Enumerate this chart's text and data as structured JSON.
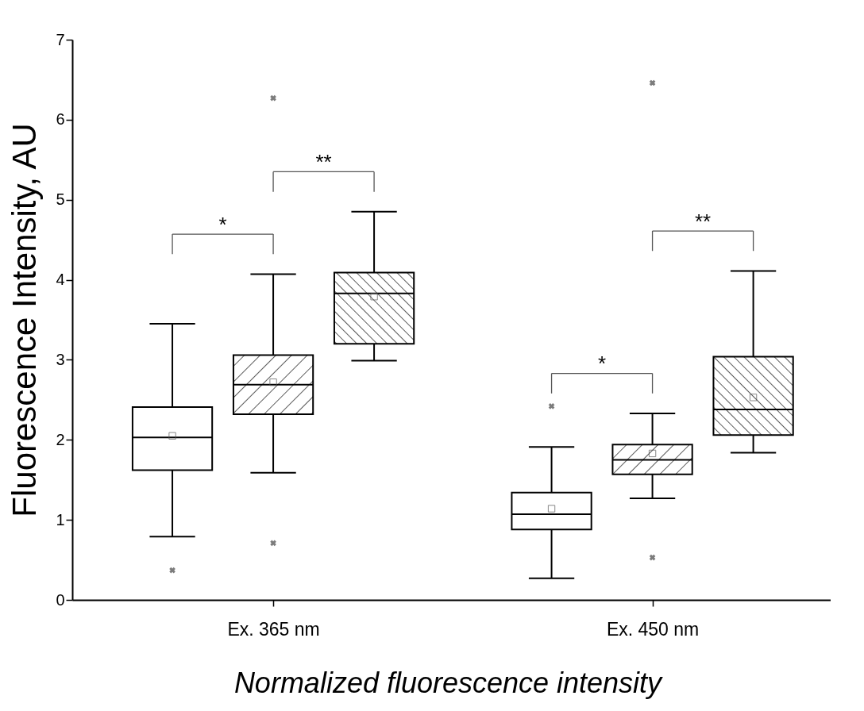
{
  "chart_data": {
    "type": "box",
    "ylabel": "Fluorescence Intensity, AU",
    "categories": [
      "Ex. 365 nm",
      "Ex. 450 nm"
    ],
    "ylim": [
      0,
      7
    ],
    "yticks": [
      0,
      1,
      2,
      3,
      4,
      5,
      6,
      7
    ],
    "grid": false,
    "series": [
      {
        "color": "#ffffff",
        "boxes": [
          {
            "low": 0.79,
            "q1": 1.62,
            "median": 2.03,
            "q3": 2.41,
            "high": 3.45,
            "mean": 2.05,
            "outliers": [
              0.37
            ]
          },
          {
            "low": 0.27,
            "q1": 0.88,
            "median": 1.07,
            "q3": 1.34,
            "high": 1.91,
            "mean": 1.14,
            "outliers": [
              2.42
            ]
          }
        ]
      },
      {
        "color": "#000000",
        "boxes": [
          {
            "low": 1.59,
            "q1": 2.32,
            "median": 2.69,
            "q3": 3.06,
            "high": 4.07,
            "mean": 2.72,
            "outliers": [
              0.71,
              6.27
            ]
          },
          {
            "low": 1.27,
            "q1": 1.57,
            "median": 1.75,
            "q3": 1.94,
            "high": 2.33,
            "mean": 1.83,
            "outliers": [
              0.53,
              6.46
            ]
          }
        ]
      },
      {
        "color": "#000000",
        "boxes": [
          {
            "low": 2.99,
            "q1": 3.2,
            "median": 3.83,
            "q3": 4.09,
            "high": 4.85,
            "mean": 3.79
          },
          {
            "low": 1.84,
            "q1": 2.06,
            "median": 2.38,
            "q3": 3.04,
            "high": 4.11,
            "mean": 2.53
          }
        ]
      }
    ],
    "annotations": [
      "*",
      "**",
      "*",
      "**",
      "Normalized fluorescence intensity"
    ]
  }
}
